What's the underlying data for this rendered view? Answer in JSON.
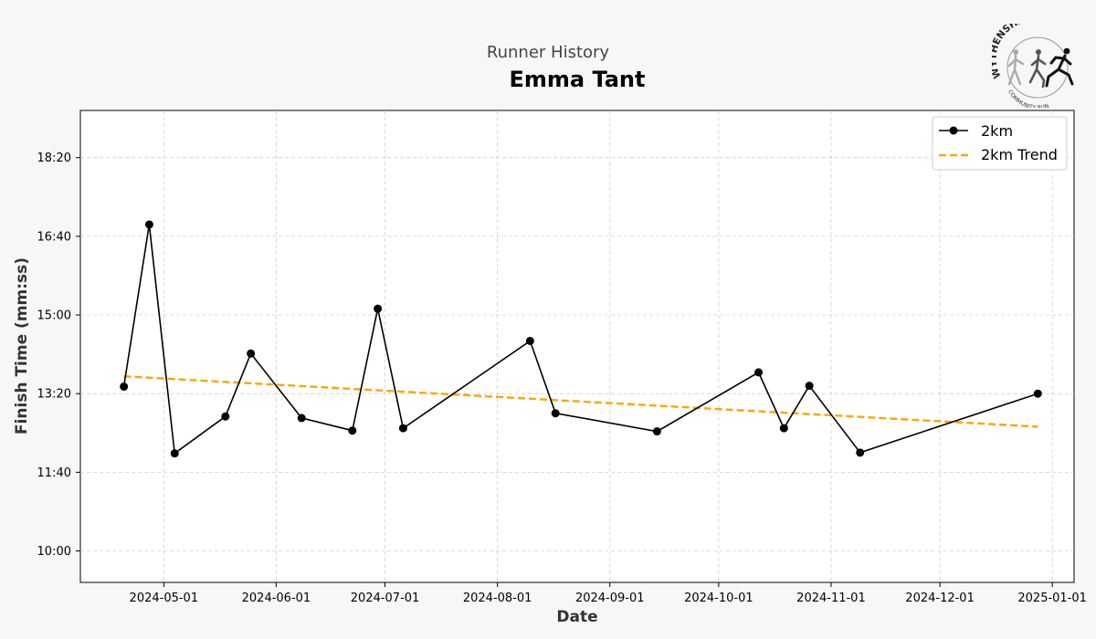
{
  "header": {
    "supertitle": "Runner History",
    "runner_name": "Emma Tant"
  },
  "logo": {
    "top_text": "WYTHENSHAWE",
    "bottom_text": "COMMUNITY RUN"
  },
  "colors": {
    "line": "#000000",
    "trend": "#FFA500",
    "background": "#f7f7f7",
    "plot_background": "#ffffff"
  },
  "chart_data": {
    "type": "line",
    "xlabel": "Date",
    "ylabel": "Finish Time (mm:ss)",
    "x_ticks": [
      "2024-05-01",
      "2024-06-01",
      "2024-07-01",
      "2024-08-01",
      "2024-09-01",
      "2024-10-01",
      "2024-11-01",
      "2024-12-01",
      "2025-01-01"
    ],
    "y_ticks": [
      "10:00",
      "11:40",
      "13:20",
      "15:00",
      "16:40",
      "18:20"
    ],
    "xlim": [
      "2024-04-08",
      "2025-01-07"
    ],
    "ylim": [
      "09:20",
      "19:20"
    ],
    "grid": true,
    "legend_position": "top-right",
    "series": [
      {
        "name": "2km",
        "style": "solid-line-with-circle-markers",
        "points": [
          {
            "date": "2024-04-20",
            "time": "13:29"
          },
          {
            "date": "2024-04-27",
            "time": "16:55"
          },
          {
            "date": "2024-05-04",
            "time": "12:04"
          },
          {
            "date": "2024-05-18",
            "time": "12:51"
          },
          {
            "date": "2024-05-25",
            "time": "14:11"
          },
          {
            "date": "2024-06-08",
            "time": "12:49"
          },
          {
            "date": "2024-06-22",
            "time": "12:33"
          },
          {
            "date": "2024-06-29",
            "time": "15:08"
          },
          {
            "date": "2024-07-06",
            "time": "12:36"
          },
          {
            "date": "2024-08-10",
            "time": "14:27"
          },
          {
            "date": "2024-08-17",
            "time": "12:55"
          },
          {
            "date": "2024-09-14",
            "time": "12:32"
          },
          {
            "date": "2024-10-12",
            "time": "13:47"
          },
          {
            "date": "2024-10-19",
            "time": "12:36"
          },
          {
            "date": "2024-10-26",
            "time": "13:30"
          },
          {
            "date": "2024-11-09",
            "time": "12:05"
          },
          {
            "date": "2024-12-28",
            "time": "13:20"
          }
        ]
      },
      {
        "name": "2km Trend",
        "style": "dashed-line",
        "points": [
          {
            "date": "2024-04-20",
            "time": "13:42"
          },
          {
            "date": "2024-12-28",
            "time": "12:38"
          }
        ]
      }
    ]
  }
}
